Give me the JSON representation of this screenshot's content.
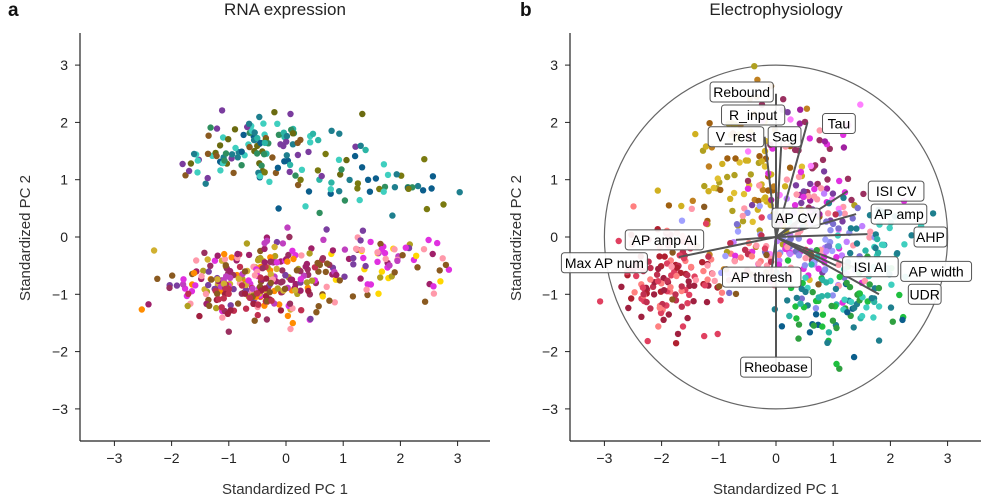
{
  "panels": [
    {
      "letter": "a",
      "title": "RNA expression",
      "xlabel": "Standardized PC 1",
      "ylabel": "Standardized PC 2"
    },
    {
      "letter": "b",
      "title": "Electrophysiology",
      "xlabel": "Standardized PC 1",
      "ylabel": "Standardized PC 2"
    }
  ],
  "chart_data": [
    {
      "type": "scatter",
      "title": "RNA expression",
      "xlabel": "Standardized PC 1",
      "ylabel": "Standardized PC 2",
      "xlim": [
        -3.6,
        3.6
      ],
      "ylim": [
        -3.6,
        3.6
      ],
      "xticks": [
        -3,
        -2,
        -1,
        0,
        1,
        2,
        3
      ],
      "yticks": [
        -3,
        -2,
        -1,
        0,
        1,
        2,
        3
      ],
      "grid": false,
      "clusters": [
        {
          "cx": -0.4,
          "cy": 1.55,
          "sx": 0.75,
          "sy": 0.3,
          "n": 120,
          "colors": [
            "#1e7f8e",
            "#2bb5a5",
            "#0b5e8c",
            "#7a3c9e",
            "#6b6b10",
            "#3fcfbf",
            "#2f8f5f",
            "#8a5a20"
          ]
        },
        {
          "cx": 1.6,
          "cy": 0.95,
          "sx": 0.8,
          "sy": 0.25,
          "n": 45,
          "colors": [
            "#2f8f5f",
            "#1e7f8e",
            "#3fcfbf",
            "#7a7a10",
            "#0b5e8c"
          ]
        },
        {
          "cx": -0.5,
          "cy": -0.75,
          "sx": 0.75,
          "sy": 0.3,
          "n": 230,
          "colors": [
            "#a0206a",
            "#7b3fa0",
            "#c03050",
            "#8a5a20",
            "#e030e0",
            "#b0a020",
            "#ff8c00",
            "#9a3060",
            "#c040c0",
            "#ff99aa",
            "#d0b030"
          ]
        },
        {
          "cx": 1.4,
          "cy": -0.45,
          "sx": 0.9,
          "sy": 0.3,
          "n": 90,
          "colors": [
            "#a0206a",
            "#7b3fa0",
            "#e030e0",
            "#b0a020",
            "#c040c0",
            "#ffd700",
            "#ff99aa",
            "#8a5a20"
          ]
        },
        {
          "cx": -0.6,
          "cy": -1.05,
          "sx": 0.5,
          "sy": 0.2,
          "n": 40,
          "colors": [
            "#c03050",
            "#a02040",
            "#8a5a20"
          ]
        }
      ]
    },
    {
      "type": "scatter",
      "title": "Electrophysiology",
      "xlabel": "Standardized PC 1",
      "ylabel": "Standardized PC 2",
      "xlim": [
        -3.6,
        3.6
      ],
      "ylim": [
        -3.6,
        3.6
      ],
      "xticks": [
        -3,
        -2,
        -1,
        0,
        1,
        2,
        3
      ],
      "yticks": [
        -3,
        -2,
        -1,
        0,
        1,
        2,
        3
      ],
      "grid": false,
      "circle_radius": 3,
      "clusters": [
        {
          "cx": -1.9,
          "cy": -0.8,
          "sx": 0.45,
          "sy": 0.45,
          "n": 120,
          "colors": [
            "#c03050",
            "#a02040",
            "#e04060",
            "#b02030",
            "#ff8080"
          ]
        },
        {
          "cx": -0.4,
          "cy": 1.0,
          "sx": 0.55,
          "sy": 0.7,
          "n": 100,
          "colors": [
            "#d0b020",
            "#b0a020",
            "#e0c030",
            "#a06010",
            "#c08020"
          ]
        },
        {
          "cx": 0.5,
          "cy": 0.9,
          "sx": 0.5,
          "sy": 0.8,
          "n": 90,
          "colors": [
            "#e030e0",
            "#a020a0",
            "#ff99aa",
            "#7b3fa0",
            "#9a3060",
            "#ff80ff"
          ]
        },
        {
          "cx": 0.5,
          "cy": -0.1,
          "sx": 0.7,
          "sy": 0.5,
          "n": 110,
          "colors": [
            "#9090f0",
            "#7b6fd0",
            "#c080ff",
            "#a0a0ff",
            "#e030e0",
            "#ff99aa"
          ]
        },
        {
          "cx": 1.1,
          "cy": -1.2,
          "sx": 0.6,
          "sy": 0.5,
          "n": 100,
          "colors": [
            "#2fa040",
            "#1fbf3f",
            "#3fcfbf",
            "#2bb5a5",
            "#0b5e8c",
            "#1e7f8e"
          ]
        },
        {
          "cx": 1.6,
          "cy": 0.1,
          "sx": 0.5,
          "sy": 0.4,
          "n": 40,
          "colors": [
            "#3fcfbf",
            "#2bb5a5",
            "#1e7f8e"
          ]
        },
        {
          "cx": -0.8,
          "cy": -0.4,
          "sx": 0.7,
          "sy": 0.4,
          "n": 60,
          "colors": [
            "#ff99aa",
            "#c03050",
            "#ff8080",
            "#e04060",
            "#8a5a20"
          ]
        }
      ],
      "loadings": [
        {
          "label": "Rebound",
          "x": 0.0,
          "y": 2.5
        },
        {
          "label": "R_input",
          "x": 0.0,
          "y": 2.15
        },
        {
          "label": "Tau",
          "x": 0.55,
          "y": 2.0
        },
        {
          "label": "V_rest",
          "x": -0.2,
          "y": 1.75
        },
        {
          "label": "Sag",
          "x": 0.1,
          "y": 1.75
        },
        {
          "label": "ISI CV",
          "x": 1.25,
          "y": 0.8
        },
        {
          "label": "AP amp",
          "x": 1.4,
          "y": 0.4
        },
        {
          "label": "AP CV",
          "x": 0.4,
          "y": 0.3
        },
        {
          "label": "AHP",
          "x": 1.6,
          "y": 0.05
        },
        {
          "label": "AP amp AI",
          "x": -0.7,
          "y": -0.05
        },
        {
          "label": "Max AP num",
          "x": -1.7,
          "y": -0.35
        },
        {
          "label": "ISI AI",
          "x": 1.05,
          "y": -0.5
        },
        {
          "label": "AP width",
          "x": 1.55,
          "y": -0.6
        },
        {
          "label": "AP thresh",
          "x": -0.1,
          "y": -0.75
        },
        {
          "label": "UDR",
          "x": 1.8,
          "y": -1.0
        },
        {
          "label": "Rheobase",
          "x": 0.0,
          "y": -2.25
        }
      ],
      "label_positions": [
        {
          "label": "Rebound",
          "x": -0.6,
          "y": 2.53
        },
        {
          "label": "R_input",
          "x": -0.4,
          "y": 2.13
        },
        {
          "label": "Tau",
          "x": 1.1,
          "y": 1.98
        },
        {
          "label": "V_rest",
          "x": -0.7,
          "y": 1.75
        },
        {
          "label": "Sag",
          "x": 0.15,
          "y": 1.75
        },
        {
          "label": "ISI CV",
          "x": 2.1,
          "y": 0.8
        },
        {
          "label": "AP amp",
          "x": 2.15,
          "y": 0.4
        },
        {
          "label": "AP CV",
          "x": 0.35,
          "y": 0.33
        },
        {
          "label": "AHP",
          "x": 2.7,
          "y": 0.0
        },
        {
          "label": "AP amp AI",
          "x": -1.95,
          "y": -0.05
        },
        {
          "label": "Max AP num",
          "x": -3.0,
          "y": -0.45
        },
        {
          "label": "ISI AI",
          "x": 1.65,
          "y": -0.52
        },
        {
          "label": "AP width",
          "x": 2.8,
          "y": -0.6
        },
        {
          "label": "AP thresh",
          "x": -0.25,
          "y": -0.7
        },
        {
          "label": "UDR",
          "x": 2.6,
          "y": -1.0
        },
        {
          "label": "Rheobase",
          "x": 0.0,
          "y": -2.27
        }
      ]
    }
  ]
}
